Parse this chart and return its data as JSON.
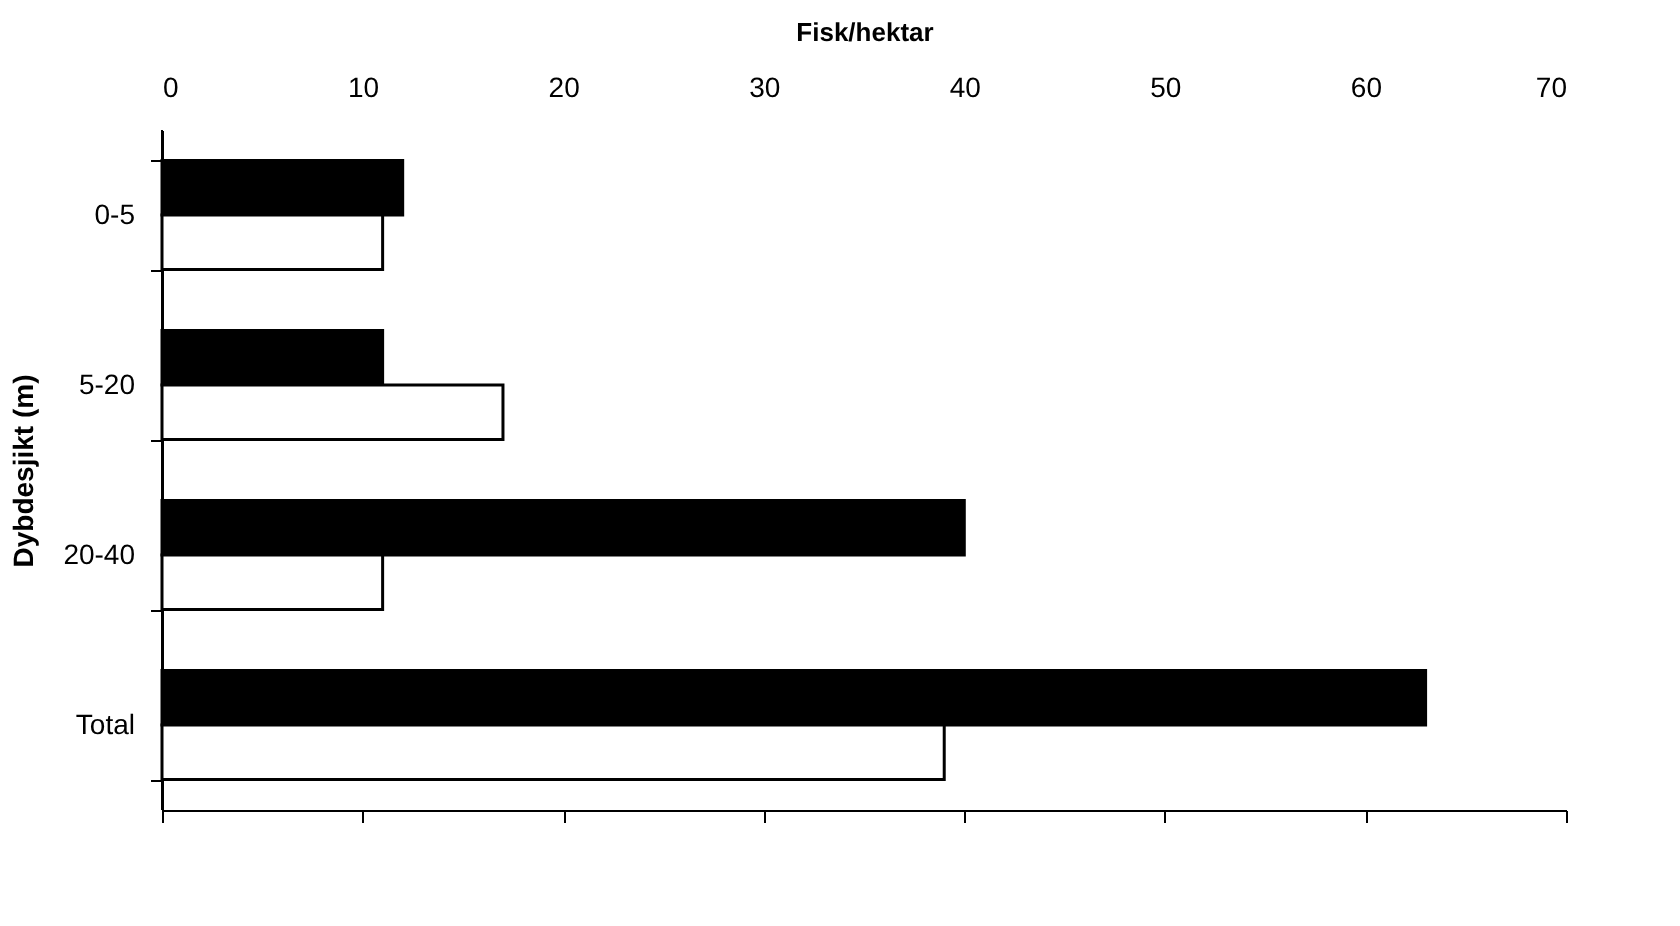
{
  "chart_data": {
    "type": "bar",
    "orientation": "horizontal",
    "xlabel": "Fisk/hektar",
    "ylabel": "Dybdesjikt (m)",
    "categories": [
      "0-5",
      "5-20",
      "20-40",
      "Total"
    ],
    "series": [
      {
        "color": "#000000",
        "values": [
          12,
          11,
          40,
          63
        ]
      },
      {
        "color": "#ffffff",
        "values": [
          11,
          17,
          11,
          39
        ]
      }
    ],
    "xlim": [
      0,
      70
    ],
    "xticks": [
      0,
      10,
      20,
      30,
      40,
      50,
      60,
      70
    ],
    "grid": false,
    "legend": false
  }
}
